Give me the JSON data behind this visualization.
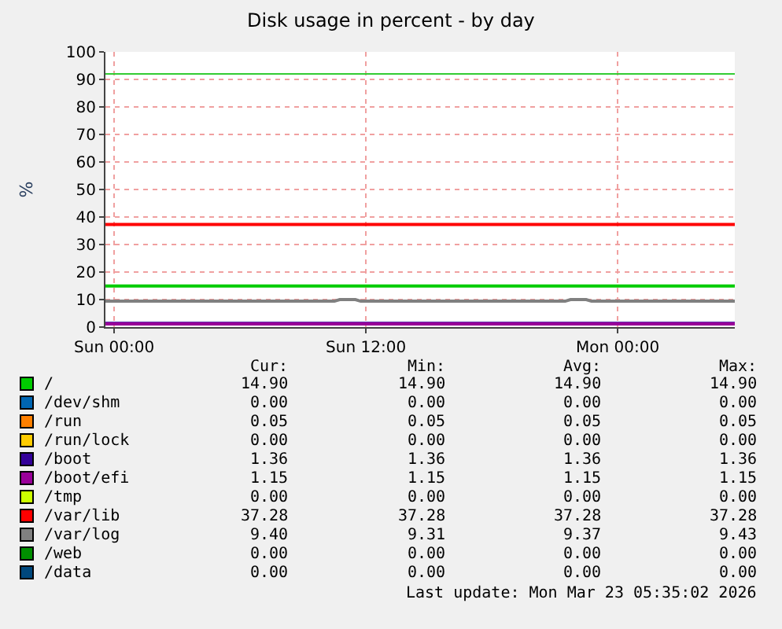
{
  "chart_data": {
    "type": "line",
    "title": "Disk usage in percent - by day",
    "ylabel": "%",
    "x": [
      "2026-03-21T23:35",
      "2026-03-23T05:35"
    ],
    "xlim": [
      "2026-03-21T23:35",
      "2026-03-23T05:35"
    ],
    "xticks": [
      {
        "value": "2026-03-22T00:00",
        "label": "Sun 00:00"
      },
      {
        "value": "2026-03-22T12:00",
        "label": "Sun 12:00"
      },
      {
        "value": "2026-03-23T00:00",
        "label": "Mon 00:00"
      }
    ],
    "ylim": [
      0,
      100
    ],
    "yticks": [
      0,
      10,
      20,
      30,
      40,
      50,
      60,
      70,
      80,
      90,
      100
    ],
    "grid": true,
    "legend": "bottom",
    "line_style": "solid",
    "marker": "none",
    "series": [
      {
        "name": "/",
        "color": "#00cc00",
        "values": [
          14.9,
          14.9
        ]
      },
      {
        "name": "/dev/shm",
        "color": "#0066b3",
        "values": [
          null,
          null
        ]
      },
      {
        "name": "/run",
        "color": "#ff8000",
        "values": [
          null,
          null
        ]
      },
      {
        "name": "/run/lock",
        "color": "#ffcc00",
        "values": [
          null,
          null
        ]
      },
      {
        "name": "/boot",
        "color": "#330099",
        "values": [
          1.36,
          1.36
        ]
      },
      {
        "name": "/boot/efi",
        "color": "#990099",
        "values": [
          1.15,
          1.15
        ]
      },
      {
        "name": "/tmp",
        "color": "#ccff00",
        "values": [
          null,
          null
        ]
      },
      {
        "name": "/var/lib",
        "color": "#ff0000",
        "values": [
          37.28,
          37.28
        ]
      },
      {
        "name": "/var/log",
        "color": "#808080",
        "x": [
          "2026-03-21T23:35",
          "2026-03-22T10:30",
          "2026-03-22T10:45",
          "2026-03-22T11:30",
          "2026-03-22T11:45",
          "2026-03-22T21:30",
          "2026-03-22T21:45",
          "2026-03-22T22:30",
          "2026-03-22T22:45",
          "2026-03-23T05:35"
        ],
        "values": [
          9.4,
          9.4,
          10,
          10,
          9.4,
          9.4,
          10,
          10,
          9.4,
          9.4
        ]
      },
      {
        "name": "/web",
        "color": "#008f00",
        "values": [
          null,
          null
        ]
      },
      {
        "name": "/data",
        "color": "#00487d",
        "values": [
          null,
          null
        ]
      }
    ],
    "ref_lines": [
      {
        "axis": "y",
        "value": 92,
        "color": "#33cc33"
      }
    ],
    "annotations": [
      "Cur:",
      "Min:",
      "Avg:",
      "Max:",
      "14.90",
      "14.90",
      "14.90",
      "14.90",
      "0.00",
      "0.00",
      "0.00",
      "0.00",
      "0.05",
      "0.05",
      "0.05",
      "0.05",
      "0.00",
      "0.00",
      "0.00",
      "0.00",
      "1.36",
      "1.36",
      "1.36",
      "1.36",
      "1.15",
      "1.15",
      "1.15",
      "1.15",
      "0.00",
      "0.00",
      "0.00",
      "0.00",
      "37.28",
      "37.28",
      "37.28",
      "37.28",
      "9.40",
      "9.31",
      "9.37",
      "9.43",
      "0.00",
      "0.00",
      "0.00",
      "0.00",
      "0.00",
      "0.00",
      "0.00",
      "0.00",
      "Last update: Mon Mar 23 05:35:02 2026"
    ]
  }
}
